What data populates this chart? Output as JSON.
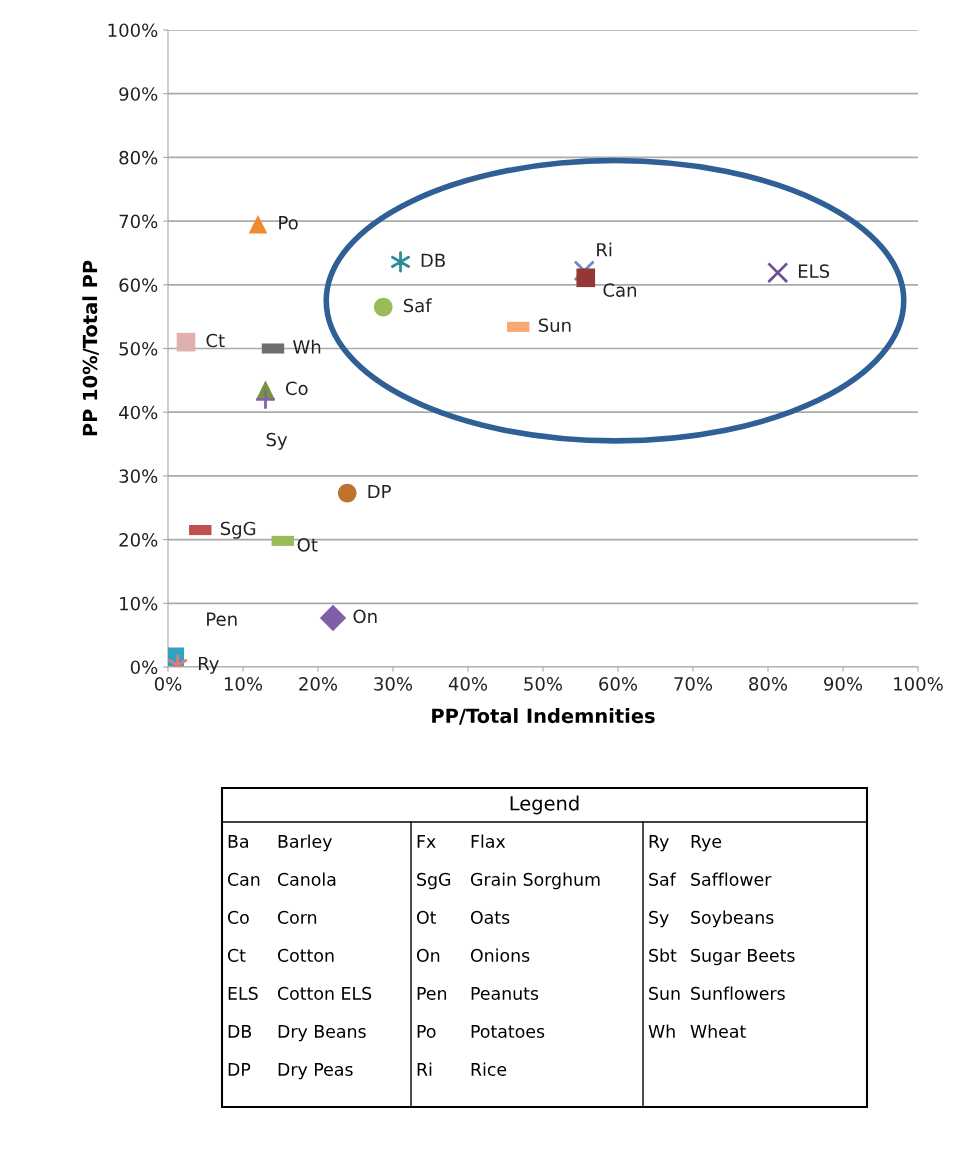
{
  "chart_data": {
    "type": "scatter",
    "xlabel": "PP/Total Indemnities",
    "ylabel": "PP 10%/Total PP",
    "xlim": [
      0,
      100
    ],
    "ylim": [
      0,
      100
    ],
    "xticks": [
      {
        "value": 0,
        "label": "0%"
      },
      {
        "value": 10,
        "label": "10%"
      },
      {
        "value": 20,
        "label": "20%"
      },
      {
        "value": 30,
        "label": "30%"
      },
      {
        "value": 40,
        "label": "40%"
      },
      {
        "value": 50,
        "label": "50%"
      },
      {
        "value": 60,
        "label": "60%"
      },
      {
        "value": 70,
        "label": "70%"
      },
      {
        "value": 80,
        "label": "80%"
      },
      {
        "value": 90,
        "label": "90%"
      },
      {
        "value": 100,
        "label": "100%"
      }
    ],
    "yticks": [
      {
        "value": 0,
        "label": "0%"
      },
      {
        "value": 10,
        "label": "10%"
      },
      {
        "value": 20,
        "label": "20%"
      },
      {
        "value": 30,
        "label": "30%"
      },
      {
        "value": 40,
        "label": "40%"
      },
      {
        "value": 50,
        "label": "50%"
      },
      {
        "value": 60,
        "label": "60%"
      },
      {
        "value": 70,
        "label": "70%"
      },
      {
        "value": 80,
        "label": "80%"
      },
      {
        "value": 90,
        "label": "90%"
      },
      {
        "value": 100,
        "label": "100%"
      }
    ],
    "grid": "y",
    "legend": "bottom",
    "series": [
      {
        "name": "Po",
        "color": "#f08a30",
        "marker": "triangle",
        "x": [
          12
        ],
        "values": [
          69.5
        ]
      },
      {
        "name": "DB",
        "color": "#2e8b9a",
        "marker": "cross",
        "x": [
          31
        ],
        "values": [
          63.6
        ]
      },
      {
        "name": "Saf",
        "color": "#9bbb59",
        "marker": "circle",
        "x": [
          28.7
        ],
        "values": [
          56.5
        ]
      },
      {
        "name": "Sun",
        "color": "#f9a870",
        "marker": "square",
        "x": [
          46.7
        ],
        "values": [
          53.4
        ]
      },
      {
        "name": "Ri",
        "color": "#6c8ebf",
        "marker": "cross",
        "x": [
          55.5
        ],
        "values": [
          62.2
        ]
      },
      {
        "name": "Can",
        "color": "#953735",
        "marker": "square",
        "x": [
          55.7
        ],
        "values": [
          61.1
        ]
      },
      {
        "name": "ELS",
        "color": "#6f4f8f",
        "marker": "cross",
        "x": [
          81.3
        ],
        "values": [
          61.9
        ]
      },
      {
        "name": "Ct",
        "color": "#e0b0b0",
        "marker": "square",
        "x": [
          2.4
        ],
        "values": [
          51
        ]
      },
      {
        "name": "Wh",
        "color": "#6e6e6e",
        "marker": "square",
        "x": [
          14
        ],
        "values": [
          50
        ]
      },
      {
        "name": "Co",
        "color": "#77933c",
        "marker": "triangle",
        "x": [
          13
        ],
        "values": [
          43.5
        ]
      },
      {
        "name": "Sy",
        "color": "#8064a2",
        "marker": "plus",
        "x": [
          13
        ],
        "values": [
          42
        ]
      },
      {
        "name": "DP",
        "color": "#c0712b",
        "marker": "circle",
        "x": [
          23.9
        ],
        "values": [
          27.3
        ]
      },
      {
        "name": "SgG",
        "color": "#c0504d",
        "marker": "square",
        "x": [
          4.3
        ],
        "values": [
          21.5
        ]
      },
      {
        "name": "Ot",
        "color": "#9bbb59",
        "marker": "square",
        "x": [
          15.3
        ],
        "values": [
          19.8
        ]
      },
      {
        "name": "On",
        "color": "#7f5fa8",
        "marker": "diamond",
        "x": [
          22
        ],
        "values": [
          7.7
        ]
      },
      {
        "name": "Pen",
        "color": "#31a2c0",
        "marker": "square",
        "x": [
          0.9
        ],
        "values": [
          1.6
        ]
      },
      {
        "name": "Ry",
        "color": "#e07b7b",
        "marker": "cross",
        "x": [
          1.3
        ],
        "values": [
          0.3
        ]
      }
    ],
    "annotations": [
      "Legend",
      "Ba",
      "Barley",
      "Can",
      "Canola",
      "Co",
      "Corn",
      "Ct",
      "Cotton",
      "ELS",
      "Cotton ELS",
      "DB",
      "Dry Beans",
      "DP",
      "Dry Peas",
      "Fx",
      "Flax",
      "SgG",
      "Grain Sorghum",
      "Ot",
      "Oats",
      "On",
      "Onions",
      "Pen",
      "Peanuts",
      "Po",
      "Potatoes",
      "Ri",
      "Rice",
      "Ry",
      "Rye",
      "Saf",
      "Safflower",
      "Sy",
      "Soybeans",
      "Sbt",
      "Sugar Beets",
      "Sun",
      "Sunflowers",
      "Wh",
      "Wheat"
    ]
  }
}
